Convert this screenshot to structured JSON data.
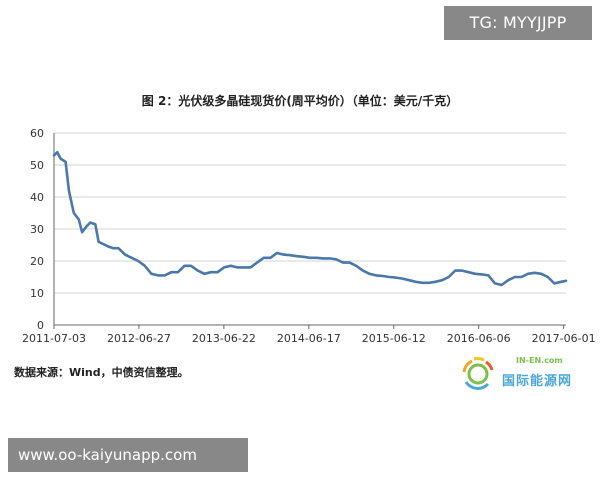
{
  "watermark_top": "TG: MYYJJPP",
  "watermark_bottom": "www.oo-kaiyunapp.com",
  "source": "数据来源：Wind，中债资信整理。",
  "logo": {
    "top": "IN-EN.com",
    "name": "国际能源网"
  },
  "chart_data": {
    "type": "line",
    "title": "图 2：光伏级多晶硅现货价(周平均价）（单位：美元/千克）",
    "xlabel": "",
    "ylabel": "",
    "ylim": [
      0,
      60
    ],
    "yticks": [
      0,
      10,
      20,
      30,
      40,
      50,
      60
    ],
    "x_range": [
      "2011-07-03",
      "2017-06-11"
    ],
    "xticks": [
      "2011-07-03",
      "2012-06-27",
      "2013-06-22",
      "2014-06-17",
      "2015-06-12",
      "2016-06-06",
      "2017-06-01"
    ],
    "grid": true,
    "legend": "none",
    "color": "#4a78a8",
    "series": [
      {
        "x": [
          "2011-07-03",
          "2011-07-17",
          "2011-07-31",
          "2011-08-21",
          "2011-09-04",
          "2011-09-25",
          "2011-10-16",
          "2011-10-30",
          "2011-11-20",
          "2011-12-04",
          "2011-12-25",
          "2012-01-08",
          "2012-02-05",
          "2012-02-19",
          "2012-03-11",
          "2012-04-01",
          "2012-04-29",
          "2012-05-27",
          "2012-06-24",
          "2012-07-22",
          "2012-08-19",
          "2012-09-16",
          "2012-10-14",
          "2012-11-11",
          "2012-12-09",
          "2013-01-06",
          "2013-02-03",
          "2013-03-03",
          "2013-03-31",
          "2013-04-28",
          "2013-05-26",
          "2013-06-23",
          "2013-07-21",
          "2013-08-18",
          "2013-09-15",
          "2013-10-13",
          "2013-11-10",
          "2013-12-08",
          "2014-01-05",
          "2014-02-02",
          "2014-03-02",
          "2014-03-30",
          "2014-04-27",
          "2014-05-25",
          "2014-06-22",
          "2014-07-20",
          "2014-08-17",
          "2014-09-14",
          "2014-10-12",
          "2014-11-09",
          "2014-12-07",
          "2015-01-04",
          "2015-02-01",
          "2015-03-01",
          "2015-03-29",
          "2015-04-26",
          "2015-05-24",
          "2015-06-21",
          "2015-07-19",
          "2015-08-16",
          "2015-09-13",
          "2015-10-11",
          "2015-11-08",
          "2015-12-06",
          "2016-01-03",
          "2016-01-31",
          "2016-02-28",
          "2016-03-27",
          "2016-04-24",
          "2016-05-22",
          "2016-06-19",
          "2016-07-17",
          "2016-08-14",
          "2016-09-11",
          "2016-10-09",
          "2016-11-06",
          "2016-12-04",
          "2017-01-01",
          "2017-01-29",
          "2017-02-26",
          "2017-03-26",
          "2017-04-23",
          "2017-05-21",
          "2017-06-11"
        ],
        "y": [
          53,
          54,
          52,
          51,
          42,
          35,
          33,
          29,
          31,
          32,
          31.5,
          26,
          25,
          24.5,
          24,
          24,
          22,
          21,
          20,
          18.5,
          16,
          15.5,
          15.5,
          16.5,
          16.5,
          18.5,
          18.5,
          17,
          16,
          16.5,
          16.5,
          18,
          18.5,
          18,
          18,
          18,
          19.5,
          21,
          21,
          22.5,
          22,
          21.8,
          21.5,
          21.3,
          21,
          21,
          20.8,
          20.8,
          20.5,
          19.5,
          19.5,
          18.5,
          17,
          16,
          15.5,
          15.3,
          15,
          14.8,
          14.5,
          14,
          13.5,
          13.2,
          13.2,
          13.5,
          14,
          15,
          17,
          17,
          16.5,
          16,
          15.8,
          15.5,
          13,
          12.5,
          14,
          15,
          15,
          16,
          16.3,
          16,
          15,
          13,
          13.5,
          13.8
        ]
      }
    ]
  }
}
